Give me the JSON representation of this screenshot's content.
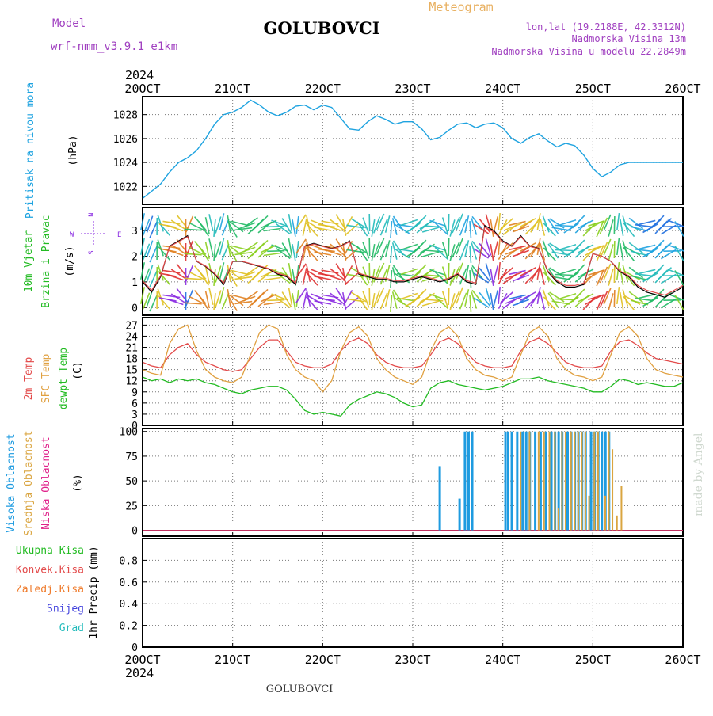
{
  "header": {
    "model_label": "Model",
    "model_name": "wrf-nmm_v3.9.1 e1km",
    "station": "GOLUBOVCI",
    "meteogram": "Meteogram",
    "lonlat": "lon,lat (19.2188E, 42.3312N)",
    "altitude": "Nadmorska Visina 13m",
    "model_altitude": "Nadmorska Visina u modelu 22.2849m",
    "year": "2024",
    "footer_station": "GOLUBOVCI",
    "credit": "made by Angel"
  },
  "colors": {
    "pressure": "#1ea3e0",
    "temp2m": "#e34b4b",
    "sfc_temp": "#e0a040",
    "dewpt": "#22bb22",
    "high_cloud": "#1e9be0",
    "mid_cloud": "#daa540",
    "low_cloud": "#e0208a",
    "total_precip": "#22bb22",
    "conv_precip": "#e34b4b",
    "frozen_precip": "#ef7a2a",
    "snow": "#4444dd",
    "hail": "#22bbbb",
    "wind_axis": "#8a2be2",
    "title_purple": "#a040c0"
  },
  "chart_data": [
    {
      "panel": "pressure",
      "type": "line",
      "ylabel_lines": [
        "Pritisak na nivou mora",
        "(hPa)"
      ],
      "x_ticks": [
        "20OCT",
        "21OCT",
        "22OCT",
        "23OCT",
        "24OCT",
        "25OCT",
        "26OCT"
      ],
      "ylim": [
        1020.5,
        1029.5
      ],
      "yticks": [
        1022,
        1024,
        1026,
        1028
      ],
      "x": [
        0,
        0.1,
        0.2,
        0.3,
        0.4,
        0.5,
        0.6,
        0.7,
        0.8,
        0.9,
        1,
        1.1,
        1.2,
        1.3,
        1.4,
        1.5,
        1.6,
        1.7,
        1.8,
        1.9,
        2,
        2.1,
        2.2,
        2.3,
        2.4,
        2.5,
        2.6,
        2.7,
        2.8,
        2.9,
        3,
        3.1,
        3.2,
        3.3,
        3.4,
        3.5,
        3.6,
        3.7,
        3.8,
        3.9,
        4,
        4.1,
        4.2,
        4.3,
        4.4,
        4.5,
        4.6,
        4.7,
        4.8,
        4.9,
        5,
        5.1,
        5.2,
        5.3,
        5.4,
        5.5,
        5.6,
        5.7,
        5.8,
        5.9,
        6
      ],
      "values": [
        1021.0,
        1021.6,
        1022.2,
        1023.2,
        1024.0,
        1024.4,
        1025.0,
        1026.0,
        1027.2,
        1028.0,
        1028.2,
        1028.6,
        1029.2,
        1028.8,
        1028.2,
        1027.9,
        1028.2,
        1028.7,
        1028.8,
        1028.4,
        1028.8,
        1028.6,
        1027.7,
        1026.8,
        1026.7,
        1027.4,
        1027.9,
        1027.6,
        1027.2,
        1027.4,
        1027.4,
        1026.8,
        1025.9,
        1026.1,
        1026.7,
        1027.2,
        1027.3,
        1026.9,
        1027.2,
        1027.3,
        1026.9,
        1026.0,
        1025.6,
        1026.1,
        1026.4,
        1025.8,
        1025.3,
        1025.6,
        1025.4,
        1024.6,
        1023.5,
        1022.8,
        1023.2,
        1023.8,
        1024.0,
        1024.0,
        1024.0,
        1024.0,
        1024.0,
        1024.0,
        1024.0
      ]
    },
    {
      "panel": "wind",
      "type": "line",
      "ylabel_lines": [
        "10m Vjetar",
        "Brzina i Pravac",
        "(m/s)"
      ],
      "compass": {
        "n": "N",
        "w": "W",
        "e": "E",
        "s": "S"
      },
      "ylim": [
        -0.3,
        3.9
      ],
      "yticks": [
        0,
        1,
        2,
        3
      ],
      "x": [
        0,
        0.1,
        0.2,
        0.3,
        0.4,
        0.5,
        0.6,
        0.7,
        0.8,
        0.9,
        1,
        1.1,
        1.2,
        1.3,
        1.4,
        1.5,
        1.6,
        1.7,
        1.8,
        1.9,
        2,
        2.1,
        2.2,
        2.3,
        2.4,
        2.5,
        2.6,
        2.7,
        2.8,
        2.9,
        3,
        3.1,
        3.2,
        3.3,
        3.4,
        3.5,
        3.6,
        3.7,
        3.8,
        3.9,
        4,
        4.1,
        4.2,
        4.3,
        4.4,
        4.5,
        4.6,
        4.7,
        4.8,
        4.9,
        5,
        5.1,
        5.2,
        5.3,
        5.4,
        5.5,
        5.6,
        5.7,
        5.8,
        5.9,
        6
      ],
      "speed": [
        1.0,
        0.6,
        1.2,
        2.4,
        2.6,
        2.8,
        1.8,
        1.6,
        1.3,
        0.9,
        1.8,
        1.8,
        1.7,
        1.6,
        1.5,
        1.3,
        1.2,
        0.9,
        2.4,
        2.5,
        2.4,
        2.3,
        2.4,
        2.6,
        1.3,
        1.2,
        1.1,
        1.1,
        1.0,
        1.0,
        1.1,
        1.2,
        1.1,
        1.0,
        1.1,
        1.3,
        1.0,
        0.9,
        3.2,
        3.0,
        2.6,
        2.4,
        2.8,
        2.4,
        2.3,
        1.4,
        1.0,
        0.8,
        0.8,
        0.9,
        2.1,
        2.0,
        1.8,
        1.4,
        1.2,
        0.8,
        0.6,
        0.5,
        0.4,
        0.6,
        0.8
      ]
    },
    {
      "panel": "temperature",
      "type": "line",
      "ylabel_lines": [
        "2m Temp",
        "SFC Temp",
        "dewpt Temp",
        "(C)"
      ],
      "ylim": [
        0,
        29
      ],
      "yticks": [
        0,
        3,
        6,
        9,
        12,
        15,
        18,
        21,
        24,
        27
      ],
      "x": [
        0,
        0.1,
        0.2,
        0.3,
        0.4,
        0.5,
        0.6,
        0.7,
        0.8,
        0.9,
        1,
        1.1,
        1.2,
        1.3,
        1.4,
        1.5,
        1.6,
        1.7,
        1.8,
        1.9,
        2,
        2.1,
        2.2,
        2.3,
        2.4,
        2.5,
        2.6,
        2.7,
        2.8,
        2.9,
        3,
        3.1,
        3.2,
        3.3,
        3.4,
        3.5,
        3.6,
        3.7,
        3.8,
        3.9,
        4,
        4.1,
        4.2,
        4.3,
        4.4,
        4.5,
        4.6,
        4.7,
        4.8,
        4.9,
        5,
        5.1,
        5.2,
        5.3,
        5.4,
        5.5,
        5.6,
        5.7,
        5.8,
        5.9,
        6
      ],
      "series": [
        {
          "key": "temp2m",
          "values": [
            17.0,
            16.0,
            15.5,
            19.0,
            21.0,
            22.0,
            19.0,
            17.0,
            16.0,
            15.0,
            14.5,
            15.0,
            18.0,
            21.0,
            23.0,
            23.0,
            20.0,
            17.0,
            16.0,
            15.5,
            15.5,
            16.5,
            20.0,
            22.5,
            23.5,
            22.0,
            19.0,
            17.0,
            16.0,
            15.5,
            15.5,
            16.0,
            19.0,
            22.5,
            23.5,
            22.0,
            19.5,
            17.0,
            16.0,
            15.5,
            15.5,
            16.0,
            20.0,
            22.5,
            23.5,
            22.0,
            19.5,
            17.0,
            16.0,
            15.5,
            15.5,
            16.0,
            20.0,
            22.5,
            23.0,
            21.5,
            19.5,
            18.0,
            17.5,
            17.0,
            16.5
          ]
        },
        {
          "key": "sfc_temp",
          "values": [
            15.0,
            14.0,
            13.5,
            22.0,
            26.0,
            27.0,
            20.0,
            15.0,
            13.0,
            12.0,
            11.5,
            13.0,
            19.0,
            25.0,
            27.0,
            26.0,
            19.0,
            15.0,
            13.0,
            12.0,
            9.0,
            12.0,
            20.0,
            25.0,
            26.5,
            24.0,
            18.0,
            15.0,
            13.0,
            12.0,
            11.0,
            13.0,
            20.0,
            25.0,
            26.5,
            24.0,
            18.0,
            15.0,
            13.5,
            13.0,
            12.0,
            13.0,
            19.0,
            25.0,
            26.5,
            24.0,
            18.0,
            15.0,
            13.5,
            13.0,
            12.0,
            13.0,
            19.0,
            25.0,
            26.5,
            24.0,
            18.0,
            15.0,
            14.0,
            13.5,
            13.0
          ]
        },
        {
          "key": "dewpt",
          "values": [
            13.0,
            12.0,
            12.5,
            11.5,
            12.5,
            12.0,
            12.5,
            11.5,
            11.0,
            10.0,
            9.0,
            8.5,
            9.5,
            10.0,
            10.5,
            10.5,
            9.5,
            7.0,
            4.0,
            3.0,
            3.5,
            3.0,
            2.5,
            5.5,
            7.0,
            8.0,
            9.0,
            8.5,
            7.5,
            6.0,
            5.0,
            5.5,
            10.0,
            11.5,
            12.0,
            11.0,
            10.5,
            10.0,
            9.5,
            10.0,
            10.5,
            11.5,
            12.5,
            12.5,
            13.0,
            12.0,
            11.5,
            11.0,
            10.5,
            10.0,
            9.0,
            9.0,
            10.5,
            12.5,
            12.0,
            11.0,
            11.5,
            11.0,
            10.5,
            10.5,
            11.5
          ]
        }
      ]
    },
    {
      "panel": "clouds",
      "type": "bar",
      "ylabel_lines": [
        "Visoka Oblacnost",
        "Srednja Oblacnost",
        "Niska Oblacnost",
        "(%)"
      ],
      "ylim": [
        -6,
        103
      ],
      "yticks": [
        0,
        25,
        50,
        75,
        100
      ],
      "high": [
        [
          3.3,
          65
        ],
        [
          3.52,
          32
        ],
        [
          3.58,
          100
        ],
        [
          3.62,
          100
        ],
        [
          3.66,
          100
        ],
        [
          4.03,
          100
        ],
        [
          4.06,
          100
        ],
        [
          4.1,
          100
        ],
        [
          4.16,
          100
        ],
        [
          4.22,
          100
        ],
        [
          4.26,
          100
        ],
        [
          4.3,
          100
        ],
        [
          4.36,
          100
        ],
        [
          4.42,
          100
        ],
        [
          4.48,
          100
        ],
        [
          4.54,
          100
        ],
        [
          4.58,
          100
        ],
        [
          4.62,
          100
        ],
        [
          4.66,
          100
        ],
        [
          4.72,
          100
        ],
        [
          4.76,
          100
        ],
        [
          4.8,
          100
        ],
        [
          4.84,
          100
        ],
        [
          4.88,
          100
        ],
        [
          4.92,
          100
        ],
        [
          4.98,
          100
        ],
        [
          5.02,
          100
        ],
        [
          5.06,
          100
        ],
        [
          5.1,
          100
        ],
        [
          5.14,
          100
        ],
        [
          5.18,
          100
        ]
      ],
      "mid": [
        [
          4.18,
          100
        ],
        [
          4.28,
          100
        ],
        [
          4.38,
          100
        ],
        [
          4.44,
          100
        ],
        [
          4.5,
          100
        ],
        [
          4.56,
          100
        ],
        [
          4.6,
          22
        ],
        [
          4.64,
          100
        ],
        [
          4.68,
          100
        ],
        [
          4.74,
          100
        ],
        [
          4.78,
          100
        ],
        [
          4.82,
          100
        ],
        [
          4.86,
          100
        ],
        [
          4.9,
          100
        ],
        [
          4.94,
          35
        ],
        [
          5.0,
          100
        ],
        [
          5.04,
          100
        ],
        [
          5.12,
          35
        ],
        [
          5.16,
          100
        ],
        [
          5.2,
          82
        ],
        [
          5.25,
          15
        ],
        [
          5.3,
          45
        ]
      ],
      "low": []
    },
    {
      "panel": "precip",
      "type": "bar",
      "ylabel_lines": [
        "1hr Precip (mm)"
      ],
      "legend": [
        "Ukupna Kisa",
        "Konvek.Kisa",
        "Zaledj.Kisa",
        "Snijeg",
        "Grad"
      ],
      "ylim": [
        0,
        1.0
      ],
      "yticks": [
        0,
        0.2,
        0.4,
        0.6,
        0.8
      ],
      "ytick_labels": [
        "0",
        "0.2",
        "0.4",
        "0.6",
        "0.8"
      ],
      "values": []
    }
  ]
}
